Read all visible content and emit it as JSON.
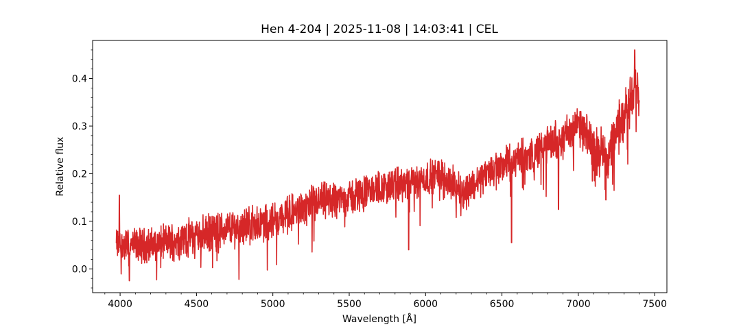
{
  "chart_data": {
    "type": "line",
    "title": "Hen 4-204 | 2025-11-08 | 14:03:41 | CEL",
    "xlabel": "Wavelength [Å]",
    "ylabel": "Relative flux",
    "xlim": [
      3820,
      7580
    ],
    "ylim": [
      -0.05,
      0.48
    ],
    "x_ticks": [
      4000,
      4500,
      5000,
      5500,
      6000,
      6500,
      7000,
      7500
    ],
    "x_tick_labels": [
      "4000",
      "4500",
      "5000",
      "5500",
      "6000",
      "6500",
      "7000",
      "7500"
    ],
    "y_ticks": [
      0.0,
      0.1,
      0.2,
      0.3,
      0.4
    ],
    "y_tick_labels": [
      "0.0",
      "0.1",
      "0.2",
      "0.3",
      "0.4"
    ],
    "grid": false,
    "series": [
      {
        "color": "#d62728",
        "x_range": [
          3975,
          7400
        ],
        "continuum": [
          [
            3975,
            0.05
          ],
          [
            4200,
            0.05
          ],
          [
            4500,
            0.07
          ],
          [
            4800,
            0.09
          ],
          [
            5000,
            0.1
          ],
          [
            5300,
            0.14
          ],
          [
            5500,
            0.15
          ],
          [
            5700,
            0.17
          ],
          [
            5900,
            0.18
          ],
          [
            6100,
            0.2
          ],
          [
            6250,
            0.16
          ],
          [
            6400,
            0.2
          ],
          [
            6500,
            0.22
          ],
          [
            6700,
            0.24
          ],
          [
            6900,
            0.28
          ],
          [
            7000,
            0.3
          ],
          [
            7100,
            0.26
          ],
          [
            7200,
            0.24
          ],
          [
            7300,
            0.33
          ],
          [
            7400,
            0.38
          ]
        ],
        "noise_amplitude": [
          [
            3975,
            0.05
          ],
          [
            5000,
            0.06
          ],
          [
            6000,
            0.05
          ],
          [
            7000,
            0.06
          ],
          [
            7400,
            0.08
          ]
        ],
        "absorption_features": [
          {
            "x": 4060,
            "y": -0.025
          },
          {
            "x": 5890,
            "y": 0.04
          },
          {
            "x": 6563,
            "y": 0.055
          },
          {
            "x": 6870,
            "y": 0.125
          },
          {
            "x": 7180,
            "y": 0.145
          }
        ],
        "emission_features": [
          {
            "x": 3995,
            "y": 0.155
          },
          {
            "x": 7370,
            "y": 0.46
          }
        ]
      }
    ]
  }
}
